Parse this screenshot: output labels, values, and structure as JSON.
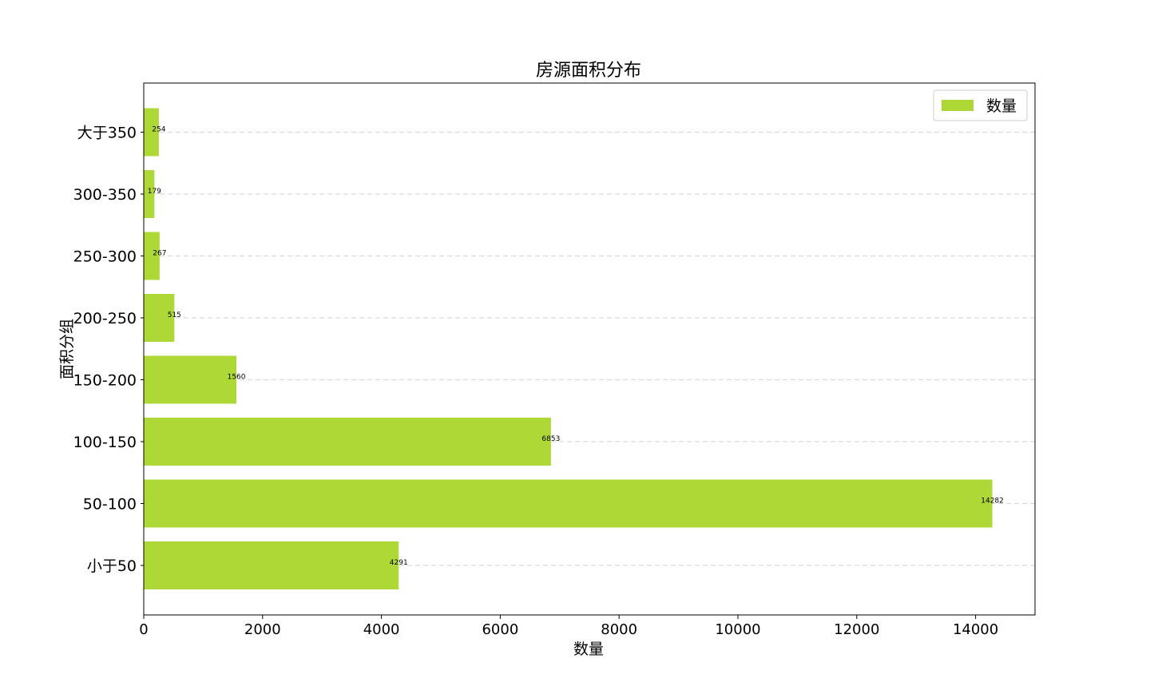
{
  "chart_data": {
    "type": "bar",
    "orientation": "horizontal",
    "title": "房源面积分布",
    "xlabel": "数量",
    "ylabel": "面积分组",
    "categories": [
      "小于50",
      "50-100",
      "100-150",
      "150-200",
      "200-250",
      "250-300",
      "300-350",
      "大于350"
    ],
    "series": [
      {
        "name": "数量",
        "values": [
          4291,
          14282,
          6853,
          1560,
          515,
          267,
          179,
          254
        ],
        "color": "#add836"
      }
    ],
    "xlim": [
      0,
      15000
    ],
    "xticks": [
      0,
      2000,
      4000,
      6000,
      8000,
      10000,
      12000,
      14000
    ],
    "grid": "y-dashed",
    "legend_position": "top-right",
    "data_labels": true
  }
}
